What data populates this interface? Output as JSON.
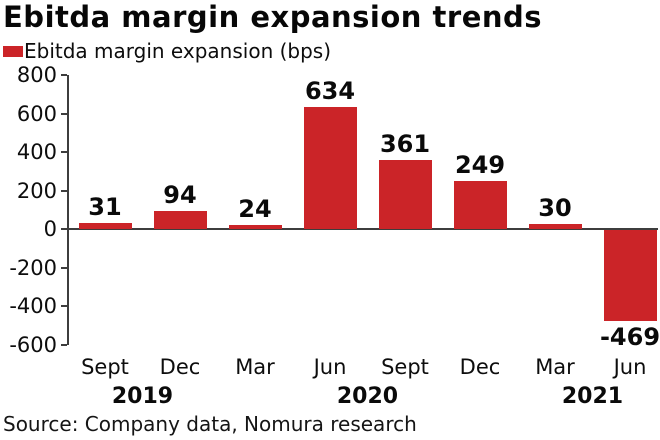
{
  "title": "Ebitda margin expansion trends",
  "legend": {
    "label": "Ebitda margin expansion (bps)"
  },
  "source": "Source: Company data, Nomura research",
  "colors": {
    "bar": "#cb2428",
    "axis": "#3d3d3d",
    "text": "#0d0d0d",
    "background": "#ffffff"
  },
  "chart_data": {
    "type": "bar",
    "title": "Ebitda margin expansion trends",
    "series_name": "Ebitda margin expansion (bps)",
    "categories": [
      "Sept",
      "Dec",
      "Mar",
      "Jun",
      "Sept",
      "Dec",
      "Mar",
      "Jun"
    ],
    "values": [
      31,
      94,
      24,
      634,
      361,
      249,
      30,
      -469
    ],
    "year_groups": [
      {
        "label": "2019",
        "start": 0,
        "end": 1
      },
      {
        "label": "2020",
        "start": 2,
        "end": 5
      },
      {
        "label": "2021",
        "start": 6,
        "end": 7
      }
    ],
    "xlabel": "",
    "ylabel": "",
    "ylim": [
      -600,
      800
    ],
    "ytick_step": 200,
    "yticks": [
      800,
      600,
      400,
      200,
      0,
      -200,
      -400,
      -600
    ],
    "grid": false,
    "legend_position": "top-left",
    "value_labels": true
  }
}
